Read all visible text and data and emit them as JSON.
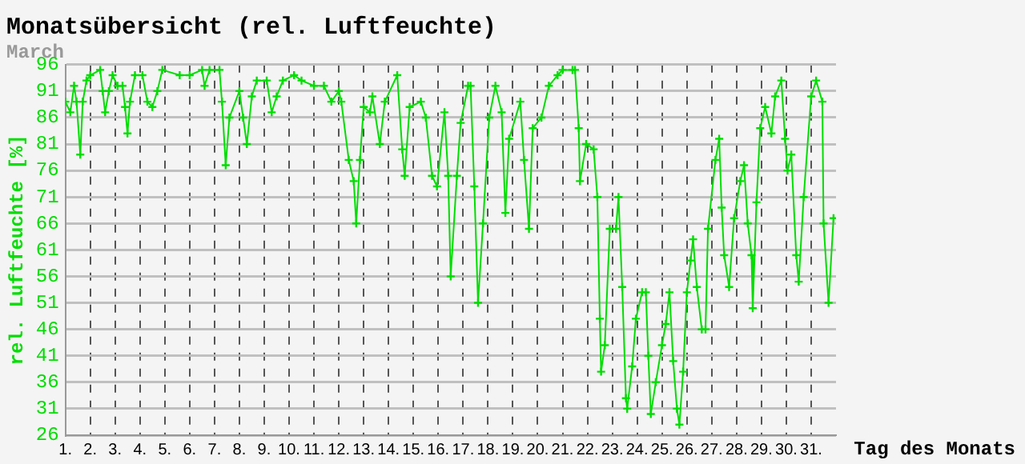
{
  "chart_data": {
    "type": "line",
    "title": "Monatsübersicht (rel. Luftfeuchte)",
    "subtitle": "March",
    "xlabel": "Tag des Monats",
    "ylabel": "rel. Luftfeuchte [%]",
    "xlim": [
      1,
      32
    ],
    "xticks": [
      {
        "value": 1,
        "label": "1."
      },
      {
        "value": 2,
        "label": "2."
      },
      {
        "value": 3,
        "label": "3."
      },
      {
        "value": 4,
        "label": "4."
      },
      {
        "value": 5,
        "label": "5."
      },
      {
        "value": 6,
        "label": "6."
      },
      {
        "value": 7,
        "label": "7."
      },
      {
        "value": 8,
        "label": "8."
      },
      {
        "value": 9,
        "label": "9."
      },
      {
        "value": 10,
        "label": "10."
      },
      {
        "value": 11,
        "label": "11."
      },
      {
        "value": 12,
        "label": "12."
      },
      {
        "value": 13,
        "label": "13."
      },
      {
        "value": 14,
        "label": "14."
      },
      {
        "value": 15,
        "label": "15."
      },
      {
        "value": 16,
        "label": "16."
      },
      {
        "value": 17,
        "label": "17."
      },
      {
        "value": 18,
        "label": "18."
      },
      {
        "value": 19,
        "label": "19."
      },
      {
        "value": 20,
        "label": "20."
      },
      {
        "value": 21,
        "label": "21."
      },
      {
        "value": 22,
        "label": "22."
      },
      {
        "value": 23,
        "label": "23."
      },
      {
        "value": 24,
        "label": "24."
      },
      {
        "value": 25,
        "label": "25."
      },
      {
        "value": 26,
        "label": "26."
      },
      {
        "value": 27,
        "label": "27."
      },
      {
        "value": 28,
        "label": "28."
      },
      {
        "value": 29,
        "label": "29."
      },
      {
        "value": 30,
        "label": "30."
      },
      {
        "value": 31,
        "label": "31."
      }
    ],
    "ylim": [
      26,
      96
    ],
    "yticks": [
      26,
      31,
      36,
      41,
      46,
      51,
      56,
      61,
      66,
      71,
      76,
      81,
      86,
      91,
      96
    ],
    "grid": true,
    "marker": "cross",
    "line_style": "solid",
    "series": [
      {
        "color": "#00dd00",
        "x": [
          1.0,
          1.2,
          1.35,
          1.45,
          1.6,
          1.7,
          1.85,
          2.0,
          2.4,
          2.5,
          2.6,
          2.75,
          2.9,
          3.1,
          3.3,
          3.4,
          3.5,
          3.6,
          3.8,
          4.1,
          4.3,
          4.5,
          4.7,
          4.9,
          5.6,
          6.0,
          6.5,
          6.6,
          6.8,
          7.2,
          7.3,
          7.45,
          7.6,
          8.0,
          8.15,
          8.3,
          8.5,
          8.7,
          9.1,
          9.3,
          9.5,
          9.75,
          10.2,
          10.5,
          11.0,
          11.4,
          11.7,
          12.0,
          12.1,
          12.4,
          12.6,
          12.7,
          12.85,
          13.0,
          13.25,
          13.35,
          13.65,
          13.85,
          14.35,
          14.55,
          14.65,
          14.85,
          15.3,
          15.5,
          15.75,
          15.95,
          16.25,
          16.4,
          16.5,
          16.75,
          16.9,
          17.2,
          17.3,
          17.45,
          17.6,
          17.8,
          18.05,
          18.3,
          18.55,
          18.7,
          18.85,
          19.3,
          19.45,
          19.65,
          19.8,
          20.15,
          20.45,
          20.8,
          21.0,
          21.4,
          21.5,
          21.65,
          21.7,
          21.95,
          22.25,
          22.4,
          22.5,
          22.55,
          22.7,
          22.9,
          23.15,
          23.25,
          23.4,
          23.55,
          23.6,
          23.8,
          23.95,
          24.2,
          24.35,
          24.45,
          24.55,
          24.75,
          25.0,
          25.15,
          25.3,
          25.45,
          25.6,
          25.7,
          25.85,
          26.0,
          26.15,
          26.25,
          26.4,
          26.6,
          26.75,
          26.85,
          27.15,
          27.3,
          27.4,
          27.5,
          27.7,
          27.9,
          28.15,
          28.3,
          28.45,
          28.6,
          28.65,
          28.8,
          28.95,
          29.15,
          29.4,
          29.55,
          29.8,
          29.95,
          30.05,
          30.2,
          30.4,
          30.5,
          30.7,
          31.0,
          31.2,
          31.45,
          31.5,
          31.7,
          31.9
        ],
        "values": [
          89,
          87,
          92,
          89,
          79,
          89,
          93,
          94,
          95,
          91,
          87,
          91,
          94,
          92,
          92,
          88,
          83,
          89,
          94,
          94,
          89,
          88,
          91,
          95,
          94,
          94,
          95,
          92,
          95,
          95,
          89,
          77,
          86,
          91,
          86,
          81,
          90,
          93,
          93,
          87,
          90,
          93,
          94,
          93,
          92,
          92,
          89,
          91,
          89,
          78,
          74,
          66,
          78,
          88,
          87,
          90,
          81,
          89,
          94,
          80,
          75,
          88,
          89,
          86,
          75,
          73,
          87,
          75,
          56,
          75,
          85,
          92,
          92,
          73,
          51,
          66,
          86,
          92,
          87,
          68,
          82,
          89,
          78,
          65,
          84,
          86,
          92,
          94,
          95,
          95,
          95,
          84,
          74,
          81,
          80,
          71,
          48,
          38,
          43,
          65,
          65,
          71,
          54,
          33,
          31,
          39,
          48,
          53,
          53,
          41,
          30,
          36,
          43,
          47,
          53,
          40,
          31,
          28,
          38,
          53,
          59,
          63,
          54,
          46,
          46,
          65,
          78,
          82,
          69,
          60,
          54,
          67,
          74,
          77,
          66,
          60,
          50,
          70,
          84,
          88,
          83,
          90,
          93,
          82,
          76,
          79,
          60,
          55,
          71,
          90,
          93,
          89,
          66,
          51,
          67
        ]
      }
    ]
  }
}
